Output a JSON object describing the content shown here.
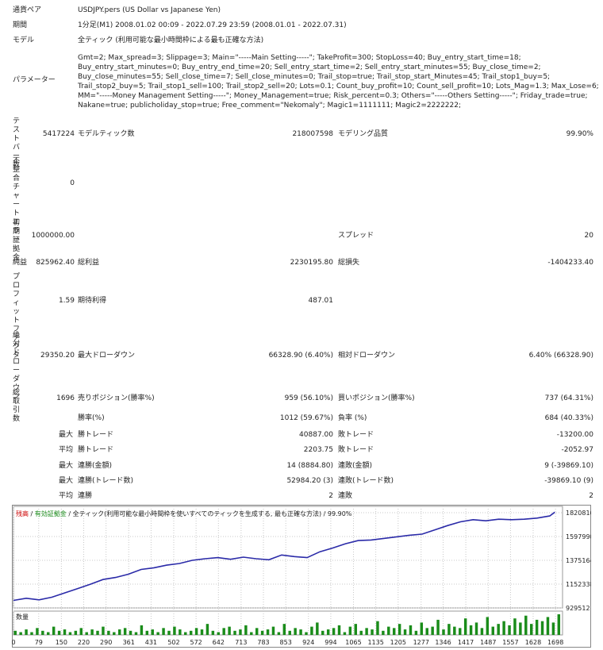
{
  "report": {
    "symbol_label": "通貨ペア",
    "symbol_value": "USDJPY.pers (US Dollar vs Japanese Yen)",
    "period_label": "期間",
    "period_value": "1分足(M1) 2008.01.02 00:09 - 2022.07.29 23:59 (2008.01.01 - 2022.07.31)",
    "model_label": "モデル",
    "model_value": "全ティック (利用可能な最小時間枠による最も正確な方法)",
    "params_label": "パラメーター",
    "params_lines": [
      "Gmt=2; Max_spread=3; Slippage=3; Main=\"-----Main Setting-----\"; TakeProfit=300; StopLoss=40; Buy_entry_start_time=18;",
      "Buy_entry_start_minutes=0; Buy_entry_end_time=20; Sell_entry_start_time=2; Sell_entry_start_minutes=55; Buy_close_time=2;",
      "Buy_close_minutes=55; Sell_close_time=7; Sell_close_minutes=0; Trail_stop=true; Trail_stop_start_Minutes=45; Trail_stop1_buy=5;",
      "Trail_stop2_buy=5; Trail_stop1_sell=100; Trail_stop2_sell=20; Lots=0.1; Count_buy_profit=10; Count_sell_profit=10; Lots_Mag=1.3; Max_Lose=6;",
      "MM=\"-----Money Management Setting-----\"; Money_Management=true; Risk_percent=0.3; Others=\"-----Others Setting-----\"; Friday_trade=true;",
      "Nakane=true; publicholiday_stop=true; Free_comment=\"Nekomaly\"; Magic1=1111111; Magic2=2222222;"
    ],
    "bars_label": [
      "テスト",
      "バ",
      "ー数"
    ],
    "bars_value": "5417224",
    "ticks_label": "モデルティック数",
    "ticks_value": "218007598",
    "quality_label": "モデリング品質",
    "quality_value": "99.90%",
    "mismatch_label": [
      "不整",
      "合チ",
      "ャー",
      "トエ",
      "ラー"
    ],
    "mismatch_value": "0",
    "deposit_label": [
      "初期",
      "証拠",
      "金"
    ],
    "deposit_value": "1000000.00",
    "spread_label": "スプレッド",
    "spread_value": "20",
    "net_label": "純益",
    "net_value": "825962.40",
    "gross_profit_label": "総利益",
    "gross_profit_value": "2230195.80",
    "gross_loss_label": "総損失",
    "gross_loss_value": "-1404233.40",
    "pf_label": [
      "プロ",
      "フィ",
      "ット",
      "ファ",
      "クタ"
    ],
    "pf_value": "1.59",
    "expected_label": "期待利得",
    "expected_value": "487.01",
    "abs_dd_label": [
      "絶対",
      "ドロ",
      "ーダ",
      "ウン"
    ],
    "abs_dd_value": "29350.20",
    "max_dd_label": "最大ドローダウン",
    "max_dd_value": "66328.90 (6.40%)",
    "rel_dd_label": "相対ドローダウン",
    "rel_dd_value": "6.40% (66328.90)",
    "trades_label": [
      "総取",
      "引数"
    ],
    "trades_value": "1696",
    "short_label": "売りポジション(勝率%)",
    "short_value": "959 (56.10%)",
    "long_label": "買いポジション(勝率%)",
    "long_value": "737 (64.31%)",
    "win_label": "勝率(%)",
    "win_value": "1012 (59.67%)",
    "loss_label": "負率 (%)",
    "loss_value": "684 (40.33%)",
    "max_prefix": "最大",
    "avg_prefix": "平均",
    "largest_win_label": "勝トレード",
    "largest_win_value": "40887.00",
    "largest_loss_label": "敗トレード",
    "largest_loss_value": "-13200.00",
    "avg_win_label": "勝トレード",
    "avg_win_value": "2203.75",
    "avg_loss_label": "敗トレード",
    "avg_loss_value": "-2052.97",
    "cons_wins_label": "連勝(金額)",
    "cons_wins_value": "14 (8884.80)",
    "cons_losses_label": "連敗(金額)",
    "cons_losses_value": "9 (-39869.10)",
    "cons_profit_label": "連勝(トレード数)",
    "cons_profit_value": "52984.20 (3)",
    "cons_loss_label": "連敗(トレード数)",
    "cons_loss_value": "-39869.10 (9)",
    "avg_cons_wins_label": "連勝",
    "avg_cons_wins_value": "2",
    "avg_cons_losses_label": "連敗",
    "avg_cons_losses_value": "2"
  },
  "chart_legend": {
    "balance": "残高",
    "equity": "有効証拠金",
    "model": "全ティック(利用可能な最小時間枠を使いすべてのティックを生成する, 最も正確な方法)",
    "quality": "99.90%",
    "volume": "数量"
  },
  "colors": {
    "balance_line": "#2a2aa8",
    "volume_bar": "#1a8c1a",
    "legend_red": "#d00000",
    "legend_green": "#1a8c1a",
    "grid": "#c8c8c8"
  },
  "chart_data": {
    "type": "line",
    "ylabel": "",
    "xlabel": "",
    "y_ticks": [
      929512,
      1152338,
      1375164,
      1597990,
      1820816
    ],
    "ylim": [
      929512,
      1880000
    ],
    "x_ticks": [
      0,
      79,
      150,
      220,
      290,
      361,
      431,
      502,
      572,
      642,
      713,
      783,
      853,
      924,
      994,
      1065,
      1135,
      1205,
      1277,
      1346,
      1417,
      1487,
      1557,
      1628,
      1698
    ],
    "xlim": [
      0,
      1720
    ],
    "series": [
      {
        "x": [
          0,
          40,
          80,
          120,
          160,
          200,
          240,
          280,
          320,
          360,
          400,
          440,
          480,
          520,
          560,
          600,
          640,
          680,
          720,
          760,
          800,
          840,
          880,
          920,
          960,
          1000,
          1040,
          1080,
          1120,
          1160,
          1200,
          1240,
          1280,
          1320,
          1360,
          1400,
          1440,
          1480,
          1520,
          1560,
          1600,
          1640,
          1680,
          1696
        ],
        "values": [
          1000000,
          1020000,
          1005000,
          1030000,
          1070000,
          1110000,
          1150000,
          1195000,
          1215000,
          1245000,
          1290000,
          1305000,
          1330000,
          1345000,
          1375000,
          1390000,
          1400000,
          1385000,
          1405000,
          1390000,
          1380000,
          1425000,
          1410000,
          1400000,
          1455000,
          1490000,
          1530000,
          1560000,
          1565000,
          1580000,
          1595000,
          1610000,
          1620000,
          1660000,
          1700000,
          1735000,
          1755000,
          1745000,
          1760000,
          1755000,
          1760000,
          1770000,
          1790000,
          1826000
        ]
      }
    ],
    "volume_series": {
      "name": "数量",
      "values": [
        3,
        2,
        4,
        2,
        5,
        3,
        2,
        6,
        3,
        4,
        2,
        3,
        5,
        2,
        4,
        3,
        6,
        3,
        2,
        4,
        5,
        3,
        2,
        7,
        3,
        4,
        2,
        5,
        3,
        6,
        4,
        2,
        3,
        5,
        4,
        8,
        3,
        2,
        5,
        6,
        3,
        4,
        7,
        2,
        5,
        3,
        4,
        6,
        2,
        8,
        3,
        5,
        4,
        2,
        6,
        9,
        3,
        4,
        5,
        7,
        2,
        6,
        8,
        3,
        5,
        4,
        10,
        3,
        6,
        5,
        8,
        4,
        7,
        3,
        9,
        5,
        6,
        11,
        4,
        8,
        6,
        5,
        12,
        7,
        9,
        5,
        13,
        6,
        8,
        10,
        7,
        12,
        9,
        14,
        8,
        11,
        10,
        13,
        9,
        15
      ]
    }
  }
}
